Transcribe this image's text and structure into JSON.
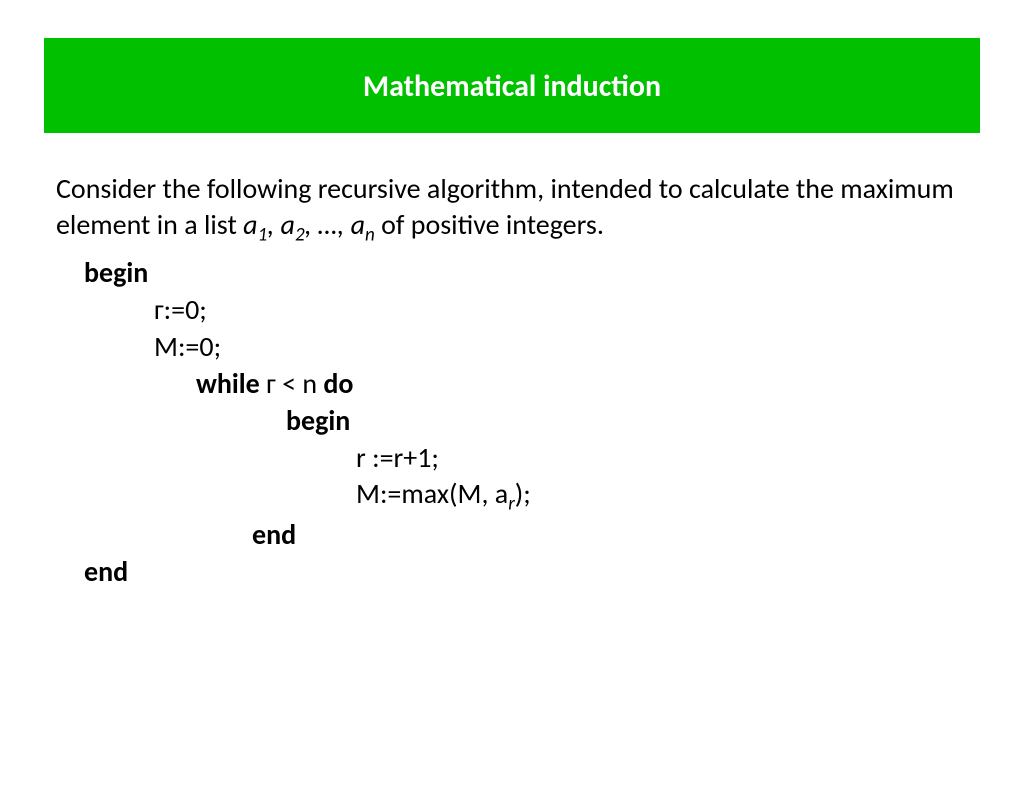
{
  "colors": {
    "title_bg": "#00c000",
    "title_text": "#ffffff",
    "body_text": "#000000",
    "page_bg": "#ffffff"
  },
  "typography": {
    "title_fontsize": 30,
    "body_fontsize": 28,
    "font_family": "Calibri"
  },
  "title": "Mathematical induction",
  "intro": {
    "prefix": "Consider the following recursive algorithm, intended to calculate the maximum element in a list ",
    "a": "a",
    "sub1": "1",
    "sep1": ", ",
    "sub2": "2",
    "sep2": ", …, ",
    "subn": "n",
    "suffix": " of positive integers."
  },
  "code": {
    "begin": "begin",
    "r_init": "г:=0;",
    "m_init": "M:=0;",
    "while_kw": "while",
    "while_cond": " г < n ",
    "do_kw": "do",
    "inner_begin": "begin",
    "r_incr": "r :=r+1;",
    "m_assign_prefix": "M:=max(M, a",
    "m_assign_sub": "r",
    "m_assign_suffix": ");",
    "inner_end": "end",
    "outer_end": "end"
  }
}
